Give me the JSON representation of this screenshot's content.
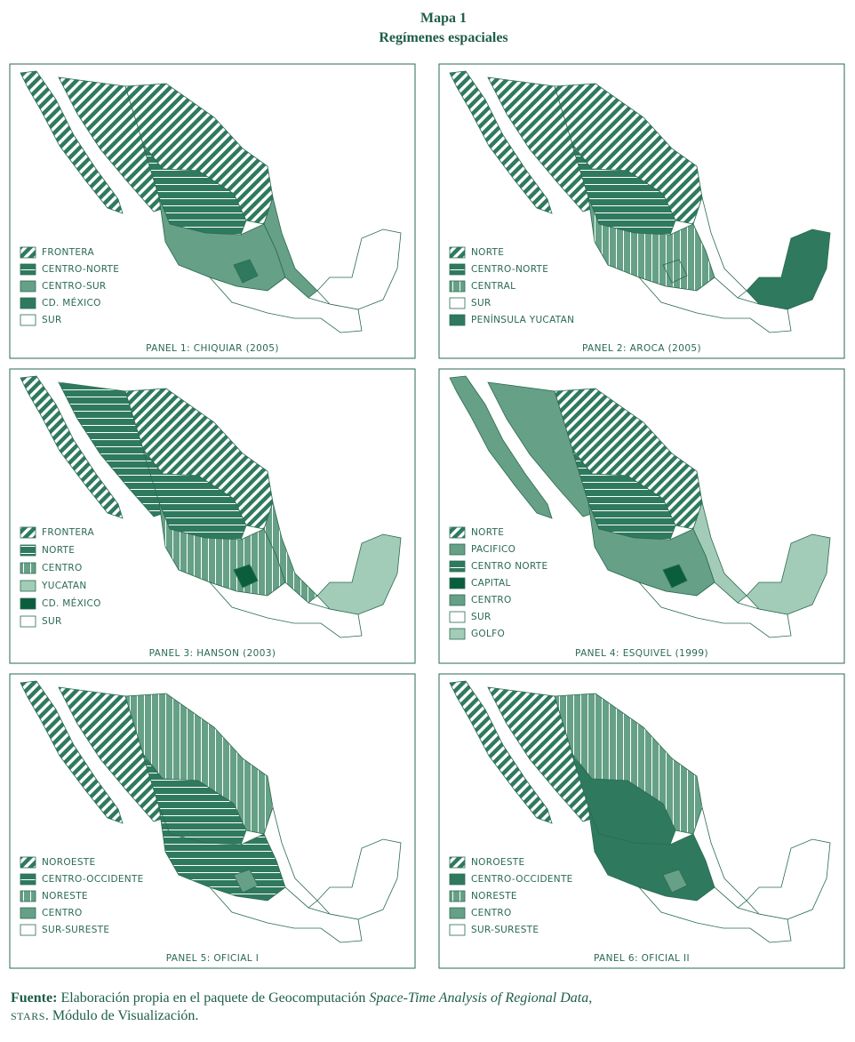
{
  "title": "Mapa 1",
  "subtitle": "Regímenes espaciales",
  "panels": [
    {
      "caption": "PANEL 1:  CHIQUIAR (2005)",
      "legend": [
        {
          "label": "FRONTERA",
          "fill": "#2f7a5f",
          "pattern": "diagonal"
        },
        {
          "label": "CENTRO-NORTE",
          "fill": "#2f7a5f",
          "pattern": "horizontal"
        },
        {
          "label": "CENTRO-SUR",
          "fill": "#66a086",
          "pattern": "none"
        },
        {
          "label": "CD. MÉXICO",
          "fill": "#2f7a5f",
          "pattern": "none"
        },
        {
          "label": "SUR",
          "fill": "#ffffff",
          "pattern": "none"
        }
      ]
    },
    {
      "caption": "PANEL 2:  AROCA (2005)",
      "legend": [
        {
          "label": "NORTE",
          "fill": "#2f7a5f",
          "pattern": "diagonal"
        },
        {
          "label": "CENTRO-NORTE",
          "fill": "#2f7a5f",
          "pattern": "horizontal"
        },
        {
          "label": "CENTRAL",
          "fill": "#66a086",
          "pattern": "vertical"
        },
        {
          "label": "SUR",
          "fill": "#ffffff",
          "pattern": "none"
        },
        {
          "label": "PENÍNSULA YUCATAN",
          "fill": "#2f7a5f",
          "pattern": "none"
        }
      ]
    },
    {
      "caption": "PANEL 3:  HANSON (2003)",
      "legend": [
        {
          "label": "FRONTERA",
          "fill": "#2f7a5f",
          "pattern": "diagonal"
        },
        {
          "label": "NORTE",
          "fill": "#2f7a5f",
          "pattern": "horizontal"
        },
        {
          "label": "CENTRO",
          "fill": "#66a086",
          "pattern": "vertical"
        },
        {
          "label": "YUCATAN",
          "fill": "#a3ccb8",
          "pattern": "none"
        },
        {
          "label": "CD. MÉXICO",
          "fill": "#0b5e3d",
          "pattern": "none"
        },
        {
          "label": "SUR",
          "fill": "#ffffff",
          "pattern": "none"
        }
      ]
    },
    {
      "caption": "PANEL 4:  ESQUIVEL (1999)",
      "legend": [
        {
          "label": "NORTE",
          "fill": "#2f7a5f",
          "pattern": "diagonal"
        },
        {
          "label": "PACIFICO",
          "fill": "#66a086",
          "pattern": "none"
        },
        {
          "label": "CENTRO NORTE",
          "fill": "#2f7a5f",
          "pattern": "horizontal"
        },
        {
          "label": "CAPITAL",
          "fill": "#0b5e3d",
          "pattern": "none"
        },
        {
          "label": "CENTRO",
          "fill": "#66a086",
          "pattern": "none"
        },
        {
          "label": "SUR",
          "fill": "#ffffff",
          "pattern": "none"
        },
        {
          "label": "GOLFO",
          "fill": "#a3ccb8",
          "pattern": "none"
        }
      ]
    },
    {
      "caption": "PANEL 5:  OFICIAL I",
      "legend": [
        {
          "label": "NOROESTE",
          "fill": "#2f7a5f",
          "pattern": "diagonal"
        },
        {
          "label": "CENTRO-OCCIDENTE",
          "fill": "#2f7a5f",
          "pattern": "horizontal"
        },
        {
          "label": "NORESTE",
          "fill": "#66a086",
          "pattern": "vertical"
        },
        {
          "label": "CENTRO",
          "fill": "#66a086",
          "pattern": "none"
        },
        {
          "label": "SUR-SURESTE",
          "fill": "#ffffff",
          "pattern": "none"
        }
      ]
    },
    {
      "caption": "PANEL 6:  OFICIAL II",
      "legend": [
        {
          "label": "NOROESTE",
          "fill": "#2f7a5f",
          "pattern": "diagonal"
        },
        {
          "label": "CENTRO-OCCIDENTE",
          "fill": "#2f7a5f",
          "pattern": "none"
        },
        {
          "label": "NORESTE",
          "fill": "#66a086",
          "pattern": "vertical"
        },
        {
          "label": "CENTRO",
          "fill": "#66a086",
          "pattern": "none"
        },
        {
          "label": "SUR-SURESTE",
          "fill": "#ffffff",
          "pattern": "none"
        }
      ]
    }
  ],
  "source": [
    {
      "text": "Fuente:",
      "style": "bold"
    },
    {
      "text": " Elaboración propia en el paquete de Geocomputación ",
      "style": "normal"
    },
    {
      "text": "Space-Time Analysis of Regional Data",
      "style": "italic"
    },
    {
      "text": ", ",
      "style": "normal"
    },
    {
      "text": "STARS",
      "style": "smallcaps"
    },
    {
      "text": ". Módulo de Visualización.",
      "style": "normal"
    }
  ]
}
